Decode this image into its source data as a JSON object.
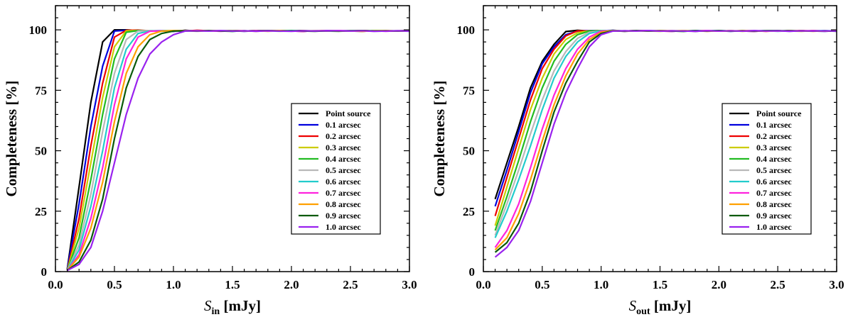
{
  "chart_data": [
    {
      "type": "line",
      "xlabel_symbol": "S",
      "xlabel_subscript": "in",
      "xlabel_unit": " [mJy]",
      "ylabel": "Completeness [%]",
      "xlim": [
        0.0,
        3.0
      ],
      "ylim": [
        0,
        110
      ],
      "xticks": [
        "0.0",
        "0.5",
        "1.0",
        "1.5",
        "2.0",
        "2.5",
        "3.0"
      ],
      "yticks": [
        "0",
        "25",
        "50",
        "75",
        "100"
      ],
      "grid": false,
      "legend_position": "right",
      "x": [
        0.1,
        0.2,
        0.3,
        0.4,
        0.5,
        0.6,
        0.7,
        0.8,
        0.9,
        1.0,
        1.1,
        1.2,
        1.3,
        1.4,
        1.5,
        1.6,
        1.7,
        1.8,
        1.9,
        2.0,
        2.1,
        2.2,
        2.3,
        2.4,
        2.5,
        2.6,
        2.7,
        2.8,
        2.9,
        3.0
      ],
      "series": [
        {
          "name": "Point source",
          "color": "#000000",
          "values": [
            1,
            35,
            70,
            95,
            100,
            100,
            99.7,
            99.5,
            99.6,
            99.4,
            99.8,
            99.5,
            99.6,
            99.7,
            99.6,
            99.5,
            99.7,
            99.6,
            99.5,
            99.6,
            99.7,
            99.5,
            99.6,
            99.6,
            99.5,
            99.7,
            99.5,
            99.6,
            99.6,
            99.7
          ]
        },
        {
          "name": "0.1 arcsec",
          "color": "#0000dd",
          "values": [
            1,
            28,
            60,
            85,
            99.5,
            99.8,
            99.6,
            99.5,
            99.7,
            99.4,
            99.6,
            99.5,
            99.7,
            99.5,
            99.6,
            99.4,
            99.6,
            99.5,
            99.7,
            99.5,
            99.4,
            99.6,
            99.5,
            99.6,
            99.5,
            99.4,
            99.6,
            99.5,
            99.5,
            99.6
          ]
        },
        {
          "name": "0.2 arcsec",
          "color": "#ee0000",
          "values": [
            0.5,
            22,
            52,
            78,
            97,
            99.8,
            99.9,
            99.6,
            99.5,
            99.7,
            99.5,
            99.8,
            99.6,
            99.5,
            99.7,
            99.6,
            99.5,
            99.7,
            99.6,
            99.5,
            99.4,
            99.6,
            99.7,
            99.5,
            99.6,
            99.7,
            99.5,
            99.6,
            99.5,
            99.7
          ]
        },
        {
          "name": "0.3 arcsec",
          "color": "#cccc00",
          "values": [
            0.5,
            18,
            45,
            72,
            93,
            99.6,
            99.7,
            99.5,
            99.6,
            99.7,
            99.5,
            99.6,
            99.5,
            99.7,
            99.6,
            99.5,
            99.6,
            99.4,
            99.6,
            99.5,
            99.6,
            99.5,
            99.7,
            99.6,
            99.5,
            99.4,
            99.6,
            99.5,
            99.6,
            99.5
          ]
        },
        {
          "name": "0.4 arcsec",
          "color": "#22bb22",
          "values": [
            0.5,
            14,
            38,
            65,
            88,
            99,
            99.7,
            99.6,
            99.5,
            99.6,
            99.7,
            99.5,
            99.6,
            99.5,
            99.7,
            99.5,
            99.6,
            99.5,
            99.7,
            99.6,
            99.5,
            99.6,
            99.5,
            99.4,
            99.6,
            99.5,
            99.7,
            99.6,
            99.5,
            99.6
          ]
        },
        {
          "name": "0.5 arcsec",
          "color": "#b8b8b8",
          "values": [
            0.5,
            11,
            32,
            58,
            82,
            96,
            99.5,
            99.7,
            99.6,
            99.5,
            99.6,
            99.4,
            99.6,
            99.7,
            99.5,
            99.6,
            99.5,
            99.6,
            99.4,
            99.5,
            99.6,
            99.7,
            99.5,
            99.6,
            99.5,
            99.6,
            99.4,
            99.5,
            99.6,
            99.5
          ]
        },
        {
          "name": "0.6 arcsec",
          "color": "#22cccc",
          "values": [
            0.5,
            9,
            27,
            50,
            76,
            92,
            98.5,
            99.5,
            99.7,
            99.6,
            99.5,
            99.6,
            99.5,
            99.7,
            99.4,
            99.6,
            99.5,
            99.6,
            99.5,
            99.7,
            99.5,
            99.6,
            99.5,
            99.6,
            99.7,
            99.5,
            99.6,
            99.5,
            99.6,
            99.4
          ]
        },
        {
          "name": "0.7 arcsec",
          "color": "#ff22dd",
          "values": [
            0.5,
            7,
            22,
            43,
            69,
            88,
            97,
            99.4,
            99.6,
            99.5,
            99.7,
            99.5,
            99.6,
            99.4,
            99.6,
            99.5,
            99.7,
            99.5,
            99.6,
            99.5,
            99.4,
            99.6,
            99.5,
            99.7,
            99.6,
            99.5,
            99.6,
            99.4,
            99.6,
            99.5
          ]
        },
        {
          "name": "0.8 arcsec",
          "color": "#ffa000",
          "values": [
            0.5,
            6,
            18,
            37,
            62,
            82,
            93,
            98,
            99.5,
            99.7,
            99.6,
            99.5,
            99.7,
            99.6,
            99.5,
            99.6,
            99.4,
            99.6,
            99.7,
            99.5,
            99.6,
            99.5,
            99.7,
            99.5,
            99.6,
            99.4,
            99.6,
            99.7,
            99.5,
            99.6
          ]
        },
        {
          "name": "0.9 arcsec",
          "color": "#0a5a0a",
          "values": [
            0.5,
            4,
            13,
            30,
            55,
            76,
            89,
            96,
            98.5,
            99.5,
            99.6,
            99.5,
            99.7,
            99.5,
            99.4,
            99.6,
            99.5,
            99.7,
            99.5,
            99.6,
            99.5,
            99.4,
            99.6,
            99.5,
            99.6,
            99.7,
            99.5,
            99.6,
            99.5,
            99.6
          ]
        },
        {
          "name": "1.0 arcsec",
          "color": "#9922ee",
          "values": [
            0.5,
            3,
            10,
            25,
            45,
            65,
            80,
            90,
            95,
            98,
            99.5,
            99.6,
            99.5,
            99.7,
            99.5,
            99.6,
            99.4,
            99.6,
            99.5,
            99.4,
            99.6,
            99.5,
            99.7,
            99.6,
            99.5,
            99.6,
            99.4,
            99.5,
            99.6,
            99.5
          ]
        }
      ]
    },
    {
      "type": "line",
      "xlabel_symbol": "S",
      "xlabel_subscript": "out",
      "xlabel_unit": " [mJy]",
      "ylabel": "Completeness [%]",
      "xlim": [
        0.0,
        3.0
      ],
      "ylim": [
        0,
        110
      ],
      "xticks": [
        "0.0",
        "0.5",
        "1.0",
        "1.5",
        "2.0",
        "2.5",
        "3.0"
      ],
      "yticks": [
        "0",
        "25",
        "50",
        "75",
        "100"
      ],
      "grid": false,
      "legend_position": "right",
      "x": [
        0.1,
        0.2,
        0.3,
        0.4,
        0.5,
        0.6,
        0.7,
        0.8,
        0.9,
        1.0,
        1.1,
        1.2,
        1.3,
        1.4,
        1.5,
        1.6,
        1.7,
        1.8,
        1.9,
        2.0,
        2.1,
        2.2,
        2.3,
        2.4,
        2.5,
        2.6,
        2.7,
        2.8,
        2.9,
        3.0
      ],
      "series": [
        {
          "name": "Point source",
          "color": "#000000",
          "values": [
            30,
            45,
            60,
            76,
            87,
            94,
            99.3,
            99.8,
            99.5,
            99.7,
            99.6,
            99.4,
            99.6,
            99.5,
            99.7,
            99.5,
            99.6,
            99.4,
            99.6,
            99.5,
            99.6,
            99.5,
            99.4,
            99.6,
            99.5,
            99.7,
            99.5,
            99.6,
            99.5,
            99.6
          ]
        },
        {
          "name": "0.1 arcsec",
          "color": "#0000dd",
          "values": [
            27,
            42,
            58,
            74,
            86,
            93,
            98,
            99.5,
            99.7,
            99.6,
            99.8,
            99.5,
            99.6,
            99.7,
            99.5,
            99.6,
            99.5,
            99.7,
            99.5,
            99.6,
            99.4,
            99.6,
            99.5,
            99.7,
            99.6,
            99.5,
            99.6,
            99.5,
            99.4,
            99.6
          ]
        },
        {
          "name": "0.2 arcsec",
          "color": "#ee0000",
          "values": [
            23,
            39,
            55,
            71,
            84,
            92,
            97.5,
            99.6,
            99.5,
            99.7,
            99.6,
            99.5,
            99.7,
            99.6,
            99.5,
            99.4,
            99.6,
            99.5,
            99.7,
            99.5,
            99.6,
            99.5,
            99.6,
            99.4,
            99.6,
            99.5,
            99.7,
            99.5,
            99.6,
            99.5
          ]
        },
        {
          "name": "0.3 arcsec",
          "color": "#cccc00",
          "values": [
            19,
            35,
            51,
            67,
            80,
            90,
            96,
            98.8,
            99.6,
            99.5,
            99.7,
            99.5,
            99.6,
            99.5,
            99.4,
            99.6,
            99.7,
            99.5,
            99.6,
            99.5,
            99.7,
            99.4,
            99.6,
            99.5,
            99.6,
            99.5,
            99.4,
            99.6,
            99.5,
            99.6
          ]
        },
        {
          "name": "0.4 arcsec",
          "color": "#22bb22",
          "values": [
            17,
            31,
            46,
            62,
            76,
            87,
            94,
            98,
            99.5,
            99.7,
            99.6,
            99.5,
            99.7,
            99.5,
            99.6,
            99.5,
            99.4,
            99.6,
            99.5,
            99.7,
            99.5,
            99.6,
            99.5,
            99.7,
            99.6,
            99.5,
            99.6,
            99.5,
            99.6,
            99.5
          ]
        },
        {
          "name": "0.5 arcsec",
          "color": "#b8b8b8",
          "values": [
            15,
            28,
            42,
            57,
            71,
            83,
            91,
            96.5,
            99,
            99.6,
            99.5,
            99.7,
            99.5,
            99.6,
            99.5,
            99.7,
            99.5,
            99.6,
            99.4,
            99.6,
            99.5,
            99.6,
            99.7,
            99.5,
            99.6,
            99.4,
            99.6,
            99.5,
            99.6,
            99.5
          ]
        },
        {
          "name": "0.6 arcsec",
          "color": "#22cccc",
          "values": [
            14,
            25,
            38,
            52,
            67,
            80,
            89,
            95,
            98.5,
            99.6,
            99.7,
            99.5,
            99.6,
            99.5,
            99.7,
            99.4,
            99.6,
            99.5,
            99.6,
            99.7,
            99.5,
            99.6,
            99.5,
            99.6,
            99.4,
            99.6,
            99.5,
            99.6,
            99.7,
            99.5
          ]
        },
        {
          "name": "0.7 arcsec",
          "color": "#ff22dd",
          "values": [
            10,
            17,
            28,
            43,
            59,
            73,
            84,
            92,
            97,
            99.5,
            99.6,
            99.5,
            99.7,
            99.6,
            99.5,
            99.4,
            99.6,
            99.5,
            99.7,
            99.5,
            99.6,
            99.5,
            99.4,
            99.6,
            99.5,
            99.6,
            99.5,
            99.7,
            99.5,
            99.6
          ]
        },
        {
          "name": "0.8 arcsec",
          "color": "#ffa000",
          "values": [
            9,
            14,
            24,
            38,
            54,
            69,
            81,
            90,
            96,
            99,
            99.7,
            99.5,
            99.6,
            99.5,
            99.7,
            99.6,
            99.5,
            99.6,
            99.4,
            99.6,
            99.5,
            99.7,
            99.6,
            99.5,
            99.6,
            99.5,
            99.6,
            99.4,
            99.6,
            99.5
          ]
        },
        {
          "name": "0.9 arcsec",
          "color": "#0a5a0a",
          "values": [
            8,
            12,
            20,
            33,
            50,
            66,
            78,
            87,
            95,
            98.5,
            99.6,
            99.5,
            99.7,
            99.5,
            99.6,
            99.5,
            99.4,
            99.6,
            99.5,
            99.7,
            99.5,
            99.6,
            99.5,
            99.6,
            99.7,
            99.5,
            99.6,
            99.5,
            99.6,
            99.4
          ]
        },
        {
          "name": "1.0 arcsec",
          "color": "#9922ee",
          "values": [
            6,
            10,
            17,
            29,
            45,
            61,
            74,
            84,
            93,
            98,
            99.5,
            99.6,
            99.5,
            99.7,
            99.5,
            99.6,
            99.5,
            99.4,
            99.6,
            99.5,
            99.6,
            99.5,
            99.7,
            99.5,
            99.6,
            99.4,
            99.6,
            99.5,
            99.6,
            99.5
          ]
        }
      ]
    }
  ]
}
